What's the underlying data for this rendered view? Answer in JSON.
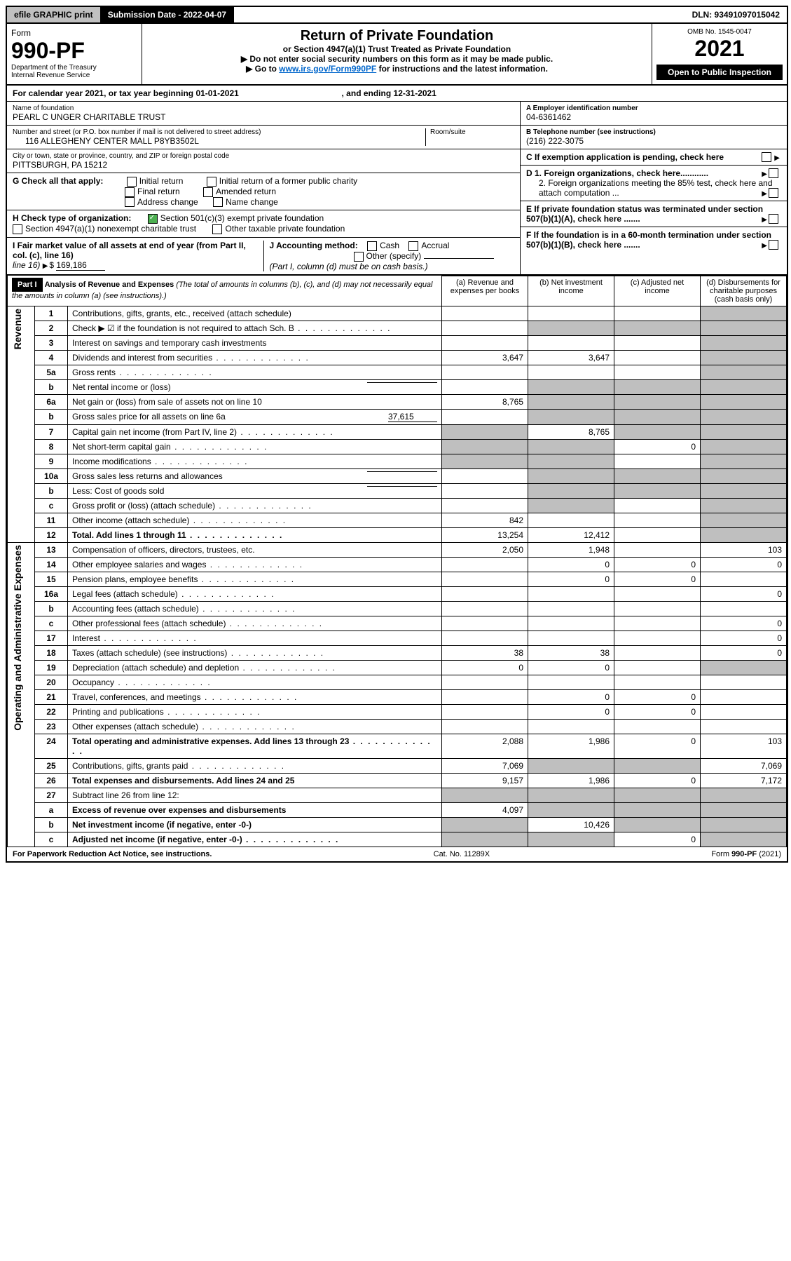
{
  "topbar": {
    "efile": "efile GRAPHIC print",
    "subdate_label": "Submission Date - 2022-04-07",
    "dln": "DLN: 93491097015042"
  },
  "header": {
    "form_word": "Form",
    "form_no": "990-PF",
    "dept": "Department of the Treasury",
    "irs": "Internal Revenue Service",
    "title": "Return of Private Foundation",
    "subtitle": "or Section 4947(a)(1) Trust Treated as Private Foundation",
    "note1": "Do not enter social security numbers on this form as it may be made public.",
    "note2_pre": "Go to ",
    "note2_link": "www.irs.gov/Form990PF",
    "note2_post": " for instructions and the latest information.",
    "omb": "OMB No. 1545-0047",
    "year": "2021",
    "open_pub": "Open to Public Inspection"
  },
  "calendar": {
    "text_a": "For calendar year 2021, or tax year beginning 01-01-2021",
    "text_b": ", and ending 12-31-2021"
  },
  "entity": {
    "name_label": "Name of foundation",
    "name": "PEARL C UNGER CHARITABLE TRUST",
    "addr_label": "Number and street (or P.O. box number if mail is not delivered to street address)",
    "addr": "116 ALLEGHENY CENTER MALL P8YB3502L",
    "room_label": "Room/suite",
    "city_label": "City or town, state or province, country, and ZIP or foreign postal code",
    "city": "PITTSBURGH, PA  15212",
    "ein_label": "A Employer identification number",
    "ein": "04-6361462",
    "phone_label": "B Telephone number (see instructions)",
    "phone": "(216) 222-3075",
    "c_label": "C If exemption application is pending, check here"
  },
  "boxG": {
    "label": "G Check all that apply:",
    "o1": "Initial return",
    "o2": "Initial return of a former public charity",
    "o3": "Final return",
    "o4": "Amended return",
    "o5": "Address change",
    "o6": "Name change"
  },
  "boxH": {
    "label": "H Check type of organization:",
    "o1": "Section 501(c)(3) exempt private foundation",
    "o2": "Section 4947(a)(1) nonexempt charitable trust",
    "o3": "Other taxable private foundation"
  },
  "boxI": {
    "label": "I Fair market value of all assets at end of year (from Part II, col. (c), line 16)",
    "valprefix": "▶ $",
    "value": "169,186"
  },
  "boxJ": {
    "label": "J Accounting method:",
    "o1": "Cash",
    "o2": "Accrual",
    "o3": "Other (specify)",
    "note": "(Part I, column (d) must be on cash basis.)"
  },
  "boxD": {
    "d1": "D 1. Foreign organizations, check here............",
    "d2": "2. Foreign organizations meeting the 85% test, check here and attach computation ..."
  },
  "boxE": {
    "text": "E  If private foundation status was terminated under section 507(b)(1)(A), check here ......."
  },
  "boxF": {
    "text": "F  If the foundation is in a 60-month termination under section 507(b)(1)(B), check here ......."
  },
  "part1": {
    "label": "Part I",
    "title": "Analysis of Revenue and Expenses",
    "note": " (The total of amounts in columns (b), (c), and (d) may not necessarily equal the amounts in column (a) (see instructions).)",
    "cols": {
      "a": "(a) Revenue and expenses per books",
      "b": "(b) Net investment income",
      "c": "(c) Adjusted net income",
      "d": "(d) Disbursements for charitable purposes (cash basis only)"
    }
  },
  "sections": {
    "rev": "Revenue",
    "oae": "Operating and Administrative Expenses"
  },
  "rows": [
    {
      "n": "1",
      "d": "Contributions, gifts, grants, etc., received (attach schedule)",
      "a": "",
      "b": "",
      "c": "",
      "dd": ""
    },
    {
      "n": "2",
      "d": "Check ▶ ☑ if the foundation is not required to attach Sch. B",
      "a": "",
      "b": "",
      "c": "",
      "dd": "",
      "dots": true,
      "bshade": true,
      "cshade": true,
      "dshade": true
    },
    {
      "n": "3",
      "d": "Interest on savings and temporary cash investments",
      "a": "",
      "b": "",
      "c": "",
      "dd": ""
    },
    {
      "n": "4",
      "d": "Dividends and interest from securities",
      "a": "3,647",
      "b": "3,647",
      "c": "",
      "dd": "",
      "dots": true
    },
    {
      "n": "5a",
      "d": "Gross rents",
      "a": "",
      "b": "",
      "c": "",
      "dd": "",
      "dots": true
    },
    {
      "n": "b",
      "d": "Net rental income or (loss)",
      "a": "",
      "b": "",
      "c": "",
      "dd": "",
      "inset": true,
      "bshade": true,
      "cshade": true,
      "dshade": true
    },
    {
      "n": "6a",
      "d": "Net gain or (loss) from sale of assets not on line 10",
      "a": "8,765",
      "b": "",
      "c": "",
      "dd": "",
      "bshade": true,
      "cshade": true
    },
    {
      "n": "b",
      "d": "Gross sales price for all assets on line 6a",
      "a": "",
      "b": "",
      "c": "",
      "dd": "",
      "inset": true,
      "insetval": "37,615",
      "bshade": true,
      "cshade": true,
      "dshade": true
    },
    {
      "n": "7",
      "d": "Capital gain net income (from Part IV, line 2)",
      "a": "",
      "b": "8,765",
      "c": "",
      "dd": "",
      "dots": true,
      "ashade": true,
      "cshade": true
    },
    {
      "n": "8",
      "d": "Net short-term capital gain",
      "a": "",
      "b": "",
      "c": "0",
      "dd": "",
      "dots": true,
      "ashade": true,
      "bshade": true
    },
    {
      "n": "9",
      "d": "Income modifications",
      "a": "",
      "b": "",
      "c": "",
      "dd": "",
      "dots": true,
      "ashade": true,
      "bshade": true
    },
    {
      "n": "10a",
      "d": "Gross sales less returns and allowances",
      "a": "",
      "b": "",
      "c": "",
      "dd": "",
      "inset": true,
      "bshade": true,
      "cshade": true,
      "dshade": true
    },
    {
      "n": "b",
      "d": "Less: Cost of goods sold",
      "a": "",
      "b": "",
      "c": "",
      "dd": "",
      "inset": true,
      "dots": true,
      "bshade": true,
      "cshade": true,
      "dshade": true
    },
    {
      "n": "c",
      "d": "Gross profit or (loss) (attach schedule)",
      "a": "",
      "b": "",
      "c": "",
      "dd": "",
      "dots": true,
      "bshade": true
    },
    {
      "n": "11",
      "d": "Other income (attach schedule)",
      "a": "842",
      "b": "",
      "c": "",
      "dd": "",
      "dots": true
    },
    {
      "n": "12",
      "d": "Total. Add lines 1 through 11",
      "a": "13,254",
      "b": "12,412",
      "c": "",
      "dd": "",
      "bold": true,
      "dots": true
    },
    {
      "n": "13",
      "d": "Compensation of officers, directors, trustees, etc.",
      "a": "2,050",
      "b": "1,948",
      "c": "",
      "dd": "103"
    },
    {
      "n": "14",
      "d": "Other employee salaries and wages",
      "a": "",
      "b": "0",
      "c": "0",
      "dd": "0",
      "dots": true
    },
    {
      "n": "15",
      "d": "Pension plans, employee benefits",
      "a": "",
      "b": "0",
      "c": "0",
      "dd": "",
      "dots": true
    },
    {
      "n": "16a",
      "d": "Legal fees (attach schedule)",
      "a": "",
      "b": "",
      "c": "",
      "dd": "0",
      "dots": true
    },
    {
      "n": "b",
      "d": "Accounting fees (attach schedule)",
      "a": "",
      "b": "",
      "c": "",
      "dd": "",
      "dots": true
    },
    {
      "n": "c",
      "d": "Other professional fees (attach schedule)",
      "a": "",
      "b": "",
      "c": "",
      "dd": "0",
      "dots": true
    },
    {
      "n": "17",
      "d": "Interest",
      "a": "",
      "b": "",
      "c": "",
      "dd": "0",
      "dots": true
    },
    {
      "n": "18",
      "d": "Taxes (attach schedule) (see instructions)",
      "a": "38",
      "b": "38",
      "c": "",
      "dd": "0",
      "dots": true
    },
    {
      "n": "19",
      "d": "Depreciation (attach schedule) and depletion",
      "a": "0",
      "b": "0",
      "c": "",
      "dd": "",
      "dots": true,
      "dshade": true
    },
    {
      "n": "20",
      "d": "Occupancy",
      "a": "",
      "b": "",
      "c": "",
      "dd": "",
      "dots": true
    },
    {
      "n": "21",
      "d": "Travel, conferences, and meetings",
      "a": "",
      "b": "0",
      "c": "0",
      "dd": "",
      "dots": true
    },
    {
      "n": "22",
      "d": "Printing and publications",
      "a": "",
      "b": "0",
      "c": "0",
      "dd": "",
      "dots": true
    },
    {
      "n": "23",
      "d": "Other expenses (attach schedule)",
      "a": "",
      "b": "",
      "c": "",
      "dd": "",
      "dots": true
    },
    {
      "n": "24",
      "d": "Total operating and administrative expenses. Add lines 13 through 23",
      "a": "2,088",
      "b": "1,986",
      "c": "0",
      "dd": "103",
      "bold": true,
      "dots": true
    },
    {
      "n": "25",
      "d": "Contributions, gifts, grants paid",
      "a": "7,069",
      "b": "",
      "c": "",
      "dd": "7,069",
      "dots": true,
      "bshade": true,
      "cshade": true
    },
    {
      "n": "26",
      "d": "Total expenses and disbursements. Add lines 24 and 25",
      "a": "9,157",
      "b": "1,986",
      "c": "0",
      "dd": "7,172",
      "bold": true
    },
    {
      "n": "27",
      "d": "Subtract line 26 from line 12:",
      "a": "",
      "b": "",
      "c": "",
      "dd": "",
      "ashade": true,
      "bshade": true,
      "cshade": true,
      "dshade": true
    },
    {
      "n": "a",
      "d": "Excess of revenue over expenses and disbursements",
      "a": "4,097",
      "b": "",
      "c": "",
      "dd": "",
      "bold": true,
      "bshade": true,
      "cshade": true,
      "dshade": true
    },
    {
      "n": "b",
      "d": "Net investment income (if negative, enter -0-)",
      "a": "",
      "b": "10,426",
      "c": "",
      "dd": "",
      "bold": true,
      "ashade": true,
      "cshade": true,
      "dshade": true
    },
    {
      "n": "c",
      "d": "Adjusted net income (if negative, enter -0-)",
      "a": "",
      "b": "",
      "c": "0",
      "dd": "",
      "bold": true,
      "dots": true,
      "ashade": true,
      "bshade": true,
      "dshade": true
    }
  ],
  "footer": {
    "left": "For Paperwork Reduction Act Notice, see instructions.",
    "mid": "Cat. No. 11289X",
    "right": "Form 990-PF (2021)"
  },
  "style": {
    "shade_color": "#bfbfbf",
    "link_color": "#0066cc",
    "check_green": "#4caf50"
  }
}
